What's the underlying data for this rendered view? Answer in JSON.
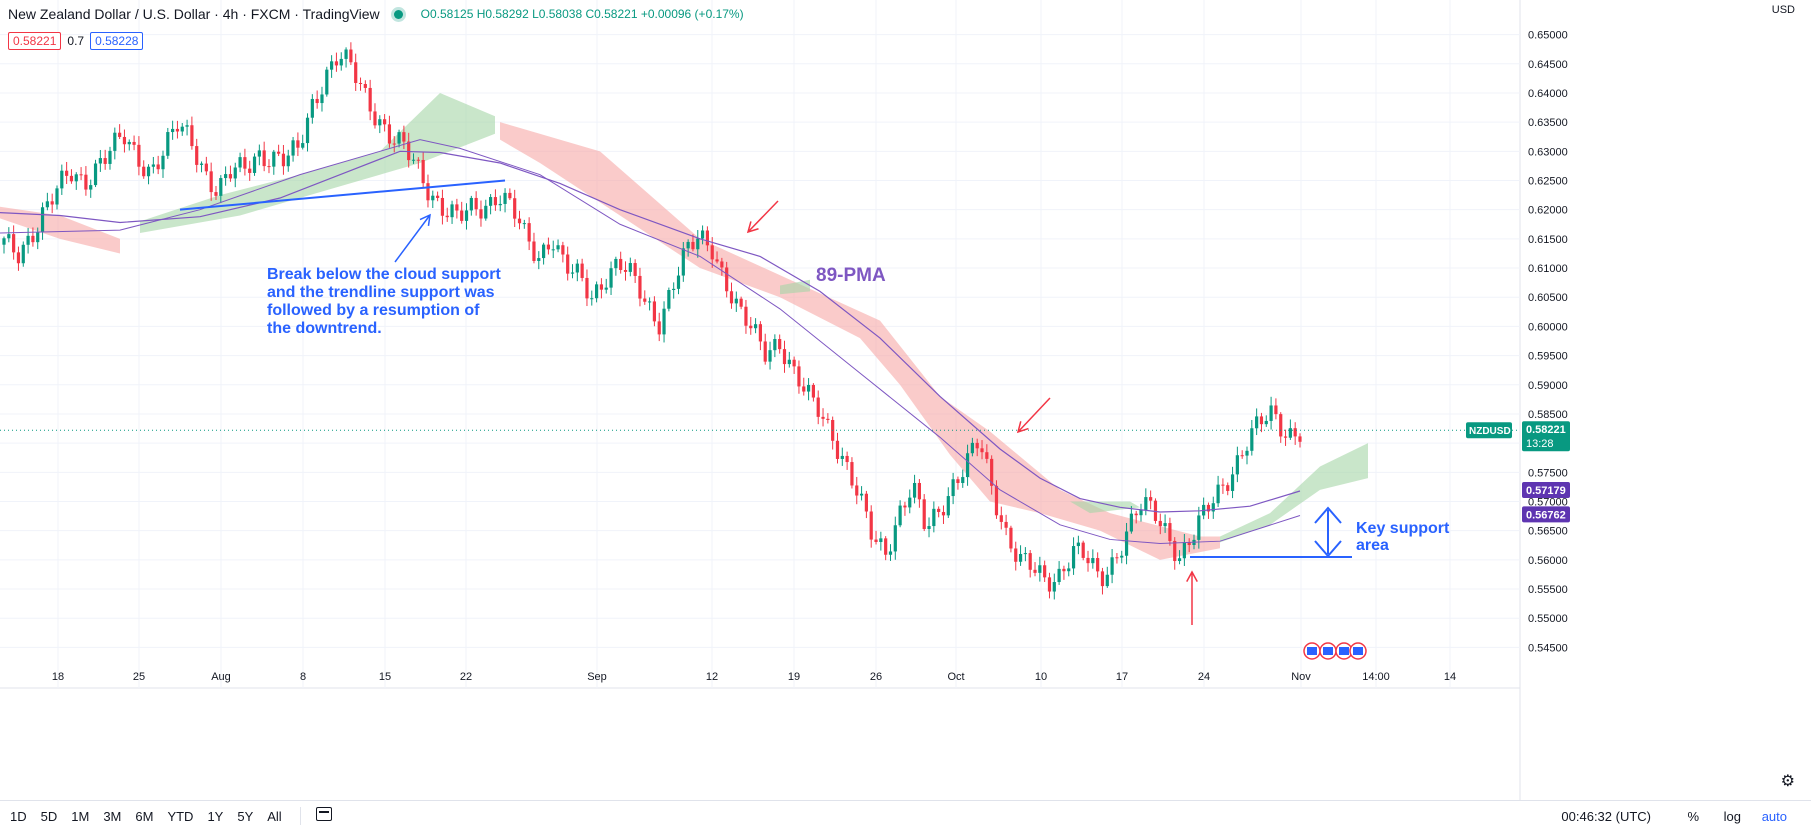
{
  "header": {
    "title": "New Zealand Dollar / U.S. Dollar · 4h · FXCM · TradingView",
    "ohlc": "O0.58125 H0.58292 L0.58038 C0.58221 +0.00096 (+0.17%)",
    "bid": "0.58221",
    "spread": "0.7",
    "ask": "0.58228",
    "currency": "USD"
  },
  "bottom_bar": {
    "ranges": [
      "1D",
      "5D",
      "1M",
      "3M",
      "6M",
      "YTD",
      "1Y",
      "5Y",
      "All"
    ],
    "clock": "00:46:32 (UTC)",
    "percent": "%",
    "log": "log",
    "auto": "auto"
  },
  "colors": {
    "bull": "#089981",
    "bear": "#f23645",
    "cloud_bull": "#a5d6a7",
    "cloud_bear": "#f7a9a7",
    "pma": "#7e57c2",
    "annotation": "#2962ff",
    "arrow_red": "#f23645"
  },
  "annotations": {
    "break_text": [
      "Break below the cloud support",
      "and the trendline support was",
      "followed by a resumption of",
      "the downtrend."
    ],
    "pma_label": "89-PMA",
    "key_support": [
      "Key support",
      "area"
    ]
  },
  "chart_data": {
    "type": "candlestick",
    "symbol": "NZDUSD",
    "timeframe": "4h",
    "ylim": [
      0.5425,
      0.6525
    ],
    "y_ticks": [
      0.545,
      0.55,
      0.555,
      0.56,
      0.565,
      0.57,
      0.575,
      0.58,
      0.585,
      0.59,
      0.595,
      0.6,
      0.605,
      0.61,
      0.615,
      0.62,
      0.625,
      0.63,
      0.635,
      0.64,
      0.645,
      0.65
    ],
    "y_tick_labels": [
      "0.54500",
      "0.55000",
      "0.55500",
      "0.56000",
      "0.56500",
      "0.57000",
      "0.57500",
      "0.58000",
      "0.58500",
      "0.59000",
      "0.59500",
      "0.60000",
      "0.60500",
      "0.61000",
      "0.61500",
      "0.62000",
      "0.62500",
      "0.63000",
      "0.63500",
      "0.64000",
      "0.64500",
      "0.65000"
    ],
    "x_ticks": [
      "18",
      "25",
      "Aug",
      "8",
      "15",
      "22",
      "Sep",
      "12",
      "19",
      "26",
      "Oct",
      "10",
      "17",
      "24",
      "Nov",
      "14:00",
      "14"
    ],
    "closes": [
      0.614,
      0.612,
      0.616,
      0.62,
      0.623,
      0.626,
      0.625,
      0.628,
      0.63,
      0.632,
      0.629,
      0.627,
      0.63,
      0.634,
      0.632,
      0.627,
      0.623,
      0.626,
      0.627,
      0.63,
      0.629,
      0.628,
      0.63,
      0.638,
      0.643,
      0.646,
      0.644,
      0.64,
      0.636,
      0.632,
      0.63,
      0.627,
      0.623,
      0.62,
      0.618,
      0.62,
      0.621,
      0.623,
      0.62,
      0.615,
      0.612,
      0.616,
      0.61,
      0.608,
      0.605,
      0.609,
      0.611,
      0.608,
      0.604,
      0.601,
      0.607,
      0.612,
      0.615,
      0.614,
      0.608,
      0.602,
      0.599,
      0.596,
      0.598,
      0.592,
      0.588,
      0.586,
      0.582,
      0.576,
      0.57,
      0.564,
      0.562,
      0.568,
      0.572,
      0.565,
      0.569,
      0.573,
      0.576,
      0.58,
      0.572,
      0.565,
      0.56,
      0.558,
      0.556,
      0.558,
      0.562,
      0.56,
      0.556,
      0.56,
      0.565,
      0.569,
      0.568,
      0.565,
      0.561,
      0.564,
      0.568,
      0.572,
      0.576,
      0.58,
      0.583,
      0.585,
      0.582,
      0.5822
    ],
    "pma_values": {
      "start": 0.6195,
      "at_15": 0.63,
      "at_oct": 0.58,
      "end": 0.5718
    },
    "lines": {
      "last_price": 0.58221,
      "pma_label": 0.57179,
      "secondary_ma": 0.56762,
      "support": 0.5605,
      "trendline": [
        0.62,
        0.625
      ]
    },
    "price_labels": {
      "symbol": "NZDUSD",
      "last": "0.58221",
      "countdown": "13:28",
      "pma": "0.57179",
      "ma2": "0.56762"
    }
  }
}
